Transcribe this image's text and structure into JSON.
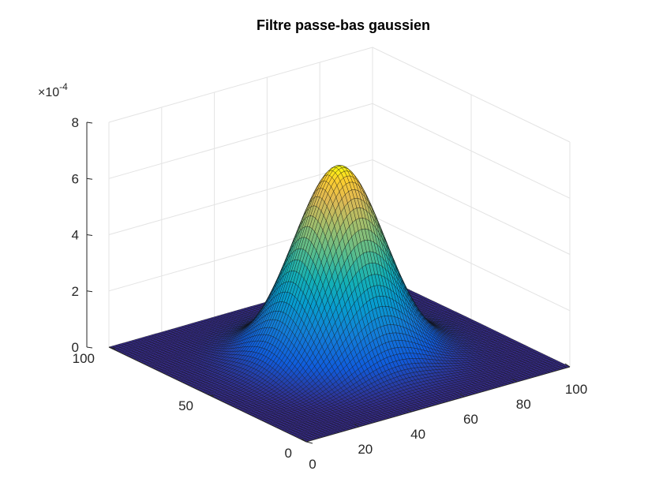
{
  "chart_data": {
    "type": "surface",
    "title": "Filtre passe-bas gaussien",
    "xlabel": "",
    "ylabel": "",
    "zlabel": "",
    "colormap": "parula",
    "grid": true,
    "x_range": [
      0,
      100
    ],
    "y_range": [
      0,
      100
    ],
    "z_range": [
      0,
      0.0008
    ],
    "x_ticks": [
      0,
      20,
      40,
      60,
      80,
      100
    ],
    "y_ticks": [
      0,
      50,
      100
    ],
    "z_ticks": [
      0,
      2,
      4,
      6,
      8
    ],
    "z_exponent": "-4",
    "z_exponent_prefix": "×10",
    "surface": {
      "grid_size": 80,
      "center_x": 50,
      "center_y": 50,
      "sigma": 14,
      "peak": 0.00068
    }
  }
}
